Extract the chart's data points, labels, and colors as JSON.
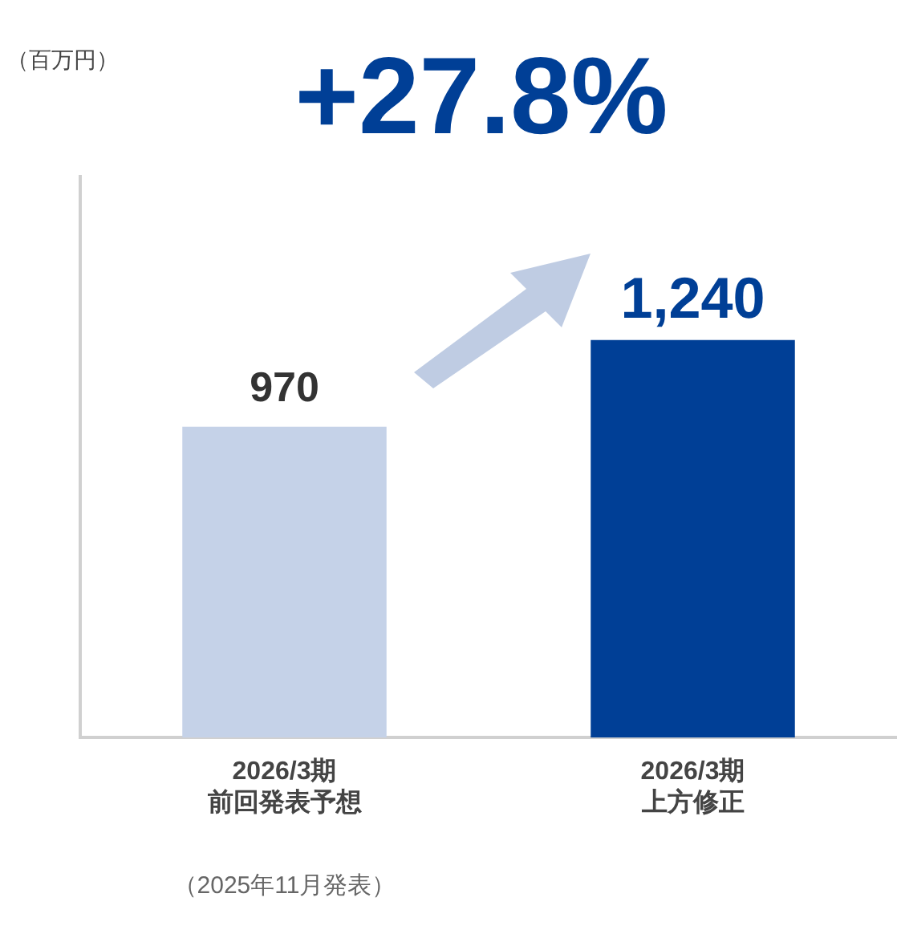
{
  "chart_data": {
    "type": "bar",
    "title": "+27.8%",
    "ylabel": "（百万円）",
    "categories": [
      "2026/3期前回発表予想",
      "2026/3期上方修正"
    ],
    "values": [
      970,
      1240
    ],
    "value_labels": [
      "970",
      "1,240"
    ],
    "colors": [
      "#c5d2e8",
      "#003f96"
    ],
    "ylim": [
      0,
      1750
    ],
    "data_labels": true,
    "grid": false,
    "legend": false,
    "annotations": [
      "（2025年11月発表）"
    ]
  }
}
